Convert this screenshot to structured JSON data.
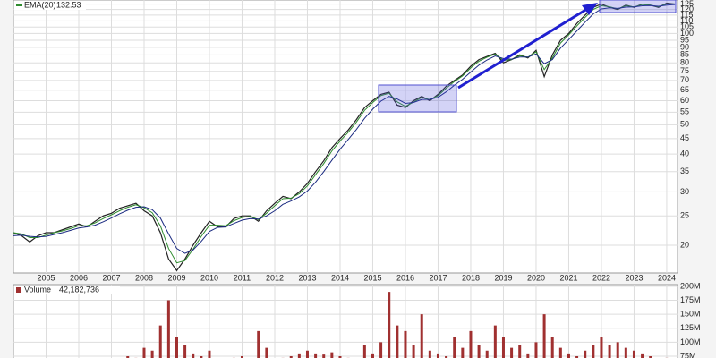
{
  "chart_data": [
    {
      "type": "line",
      "log_scale": true,
      "grid": true,
      "legend_value": 132.53,
      "x": [
        2004,
        2004.25,
        2004.5,
        2004.75,
        2005,
        2005.25,
        2005.5,
        2005.75,
        2006,
        2006.25,
        2006.5,
        2006.75,
        2007,
        2007.25,
        2007.5,
        2007.75,
        2008,
        2008.25,
        2008.5,
        2008.75,
        2009,
        2009.25,
        2009.5,
        2009.75,
        2010,
        2010.25,
        2010.5,
        2010.75,
        2011,
        2011.25,
        2011.5,
        2011.75,
        2012,
        2012.25,
        2012.5,
        2012.75,
        2013,
        2013.25,
        2013.5,
        2013.75,
        2014,
        2014.25,
        2014.5,
        2014.75,
        2015,
        2015.25,
        2015.5,
        2015.75,
        2016,
        2016.25,
        2016.5,
        2016.75,
        2017,
        2017.25,
        2017.5,
        2017.75,
        2018,
        2018.25,
        2018.5,
        2018.75,
        2019,
        2019.25,
        2019.5,
        2019.75,
        2020,
        2020.25,
        2020.5,
        2020.75,
        2021,
        2021.25,
        2021.5,
        2021.75,
        2022,
        2022.25,
        2022.5,
        2022.75,
        2023,
        2023.25,
        2023.5,
        2023.75,
        2024,
        2024.25
      ],
      "series": [
        {
          "color": "#222222",
          "values": [
            22,
            21.5,
            20.5,
            21.5,
            22,
            22,
            22.5,
            23,
            23.5,
            23,
            24,
            25,
            25.5,
            26.5,
            27,
            27.5,
            26,
            25,
            22,
            18,
            16.5,
            18,
            20,
            22,
            24,
            23,
            23,
            24.5,
            25,
            25,
            24,
            26,
            27.5,
            29,
            28.5,
            30,
            32,
            35,
            38,
            42,
            45,
            48,
            52,
            57,
            60,
            63,
            64,
            58,
            57,
            60,
            62,
            60,
            63,
            67,
            70,
            73,
            78,
            82,
            84,
            86,
            80,
            82,
            85,
            83,
            88,
            72,
            85,
            95,
            100,
            108,
            115,
            122,
            125,
            122,
            120,
            124,
            122,
            125,
            124,
            122,
            126,
            125
          ]
        },
        {
          "name": "EMA(20)",
          "color": "#2e8b2e",
          "values": [
            22,
            21.8,
            21.2,
            21.2,
            21.6,
            22,
            22.3,
            22.7,
            23.2,
            23.2,
            23.7,
            24.5,
            25.2,
            26,
            26.7,
            27.2,
            26.6,
            25.6,
            23.2,
            19.5,
            17.5,
            17.8,
            19.4,
            21.4,
            23.3,
            23.3,
            23.2,
            24.1,
            24.7,
            24.9,
            24.3,
            25.5,
            27,
            28.5,
            28.6,
            29.6,
            31.4,
            34.2,
            37.2,
            41,
            44.2,
            47.2,
            51,
            55.8,
            59.2,
            62.4,
            63.5,
            59.5,
            57.5,
            59.4,
            61.5,
            60.5,
            62.4,
            66,
            69.4,
            72.4,
            77,
            81,
            83.5,
            85.5,
            81.5,
            82,
            84.4,
            83.5,
            87,
            76,
            83,
            93,
            99,
            106,
            113,
            120,
            123.5,
            122.5,
            120.5,
            123.4,
            122.4,
            124.5,
            124,
            122.5,
            125.2,
            125.2
          ]
        },
        {
          "color": "#1a2a80",
          "values": [
            21.5,
            21.6,
            21.4,
            21.3,
            21.4,
            21.7,
            22,
            22.4,
            22.8,
            23,
            23.3,
            23.9,
            24.6,
            25.4,
            26.1,
            26.7,
            26.8,
            26.2,
            24.6,
            21.8,
            19.5,
            18.8,
            19.3,
            20.6,
            22.2,
            22.9,
            23,
            23.6,
            24.2,
            24.5,
            24.4,
            25,
            26,
            27.3,
            28,
            28.9,
            30.2,
            32.3,
            35,
            38.2,
            41.5,
            44.7,
            48.2,
            52.5,
            56.3,
            59.8,
            62,
            60.8,
            58.8,
            59.2,
            60.6,
            60.6,
            61.6,
            64.2,
            67.5,
            70.6,
            74.6,
            78.6,
            81.8,
            84.3,
            82.6,
            82.3,
            83.6,
            83.6,
            85.6,
            79.5,
            82,
            89.5,
            95.5,
            102,
            109,
            116,
            120.5,
            121.6,
            121,
            122.2,
            122.3,
            123.4,
            123.7,
            123,
            124,
            124.6
          ]
        }
      ],
      "xlim": [
        2004,
        2024.33
      ],
      "xticks": [
        2005,
        2006,
        2007,
        2008,
        2009,
        2010,
        2011,
        2012,
        2013,
        2014,
        2015,
        2016,
        2017,
        2018,
        2019,
        2020,
        2021,
        2022,
        2023,
        2024
      ],
      "ylim": [
        16.2,
        129
      ],
      "yticks": [
        20,
        25,
        30,
        35,
        40,
        45,
        50,
        55,
        60,
        65,
        70,
        75,
        80,
        85,
        90,
        95,
        100,
        105,
        110,
        115,
        120,
        125
      ]
    },
    {
      "type": "bar",
      "title": "Volume",
      "legend_value": "42,182,736",
      "color": "#a03030",
      "x": [
        2004,
        2004.25,
        2004.5,
        2004.75,
        2005,
        2005.25,
        2005.5,
        2005.75,
        2006,
        2006.25,
        2006.5,
        2006.75,
        2007,
        2007.25,
        2007.5,
        2007.75,
        2008,
        2008.25,
        2008.5,
        2008.75,
        2009,
        2009.25,
        2009.5,
        2009.75,
        2010,
        2010.25,
        2010.5,
        2010.75,
        2011,
        2011.25,
        2011.5,
        2011.75,
        2012,
        2012.25,
        2012.5,
        2012.75,
        2013,
        2013.25,
        2013.5,
        2013.75,
        2014,
        2014.25,
        2014.5,
        2014.75,
        2015,
        2015.25,
        2015.5,
        2015.75,
        2016,
        2016.25,
        2016.5,
        2016.75,
        2017,
        2017.25,
        2017.5,
        2017.75,
        2018,
        2018.25,
        2018.5,
        2018.75,
        2019,
        2019.25,
        2019.5,
        2019.75,
        2020,
        2020.25,
        2020.5,
        2020.75,
        2021,
        2021.25,
        2021.5,
        2021.75,
        2022,
        2022.25,
        2022.5,
        2022.75,
        2023,
        2023.25,
        2023.5,
        2023.75,
        2024,
        2024.25
      ],
      "values": [
        55000000,
        58000000,
        52000000,
        60000000,
        55000000,
        50000000,
        62000000,
        58000000,
        60000000,
        65000000,
        58000000,
        62000000,
        70000000,
        68000000,
        75000000,
        72000000,
        90000000,
        85000000,
        130000000,
        175000000,
        110000000,
        95000000,
        80000000,
        75000000,
        85000000,
        70000000,
        68000000,
        72000000,
        75000000,
        70000000,
        120000000,
        90000000,
        70000000,
        72000000,
        75000000,
        80000000,
        85000000,
        80000000,
        78000000,
        82000000,
        75000000,
        72000000,
        70000000,
        95000000,
        80000000,
        100000000,
        190000000,
        130000000,
        120000000,
        95000000,
        150000000,
        85000000,
        80000000,
        75000000,
        110000000,
        90000000,
        120000000,
        95000000,
        85000000,
        130000000,
        110000000,
        90000000,
        95000000,
        80000000,
        100000000,
        150000000,
        110000000,
        90000000,
        80000000,
        75000000,
        85000000,
        95000000,
        110000000,
        95000000,
        100000000,
        90000000,
        85000000,
        80000000,
        75000000,
        70000000,
        72000000,
        68000000
      ],
      "xlim": [
        2004,
        2024.33
      ],
      "ylim": [
        59000000,
        203000000
      ],
      "yticks": [
        {
          "value": 75000000,
          "label": "75M"
        },
        {
          "value": 100000000,
          "label": "100M"
        },
        {
          "value": 125000000,
          "label": "125M"
        },
        {
          "value": 150000000,
          "label": "150M"
        },
        {
          "value": 175000000,
          "label": "175M"
        },
        {
          "value": 200000000,
          "label": "200M"
        }
      ]
    }
  ]
}
